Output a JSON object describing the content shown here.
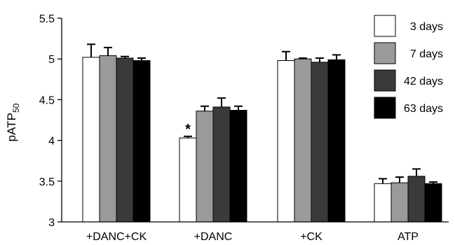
{
  "chart_data": {
    "type": "bar",
    "title": "",
    "xlabel": "",
    "ylabel": "pATP",
    "ylabel_subscript": "50",
    "ylim": [
      3,
      5.5
    ],
    "yticks": [
      "3",
      "3.5",
      "4",
      "4.5",
      "5",
      "5.5"
    ],
    "categories": [
      "+DANC+CK",
      "+DANC",
      "+CK",
      "ATP"
    ],
    "legend_position": "top-right",
    "grid": false,
    "series": [
      {
        "name": "3 days",
        "color": "#ffffff",
        "values": [
          5.02,
          4.03,
          4.98,
          3.47
        ],
        "errors": [
          0.16,
          0.02,
          0.11,
          0.06
        ]
      },
      {
        "name": "7 days",
        "color": "#9a9a9a",
        "values": [
          5.04,
          4.36,
          5.0,
          3.48
        ],
        "errors": [
          0.1,
          0.06,
          0.01,
          0.07
        ]
      },
      {
        "name": "42 days",
        "color": "#3a3a3a",
        "values": [
          5.01,
          4.41,
          4.96,
          3.56
        ],
        "errors": [
          0.02,
          0.11,
          0.05,
          0.09
        ]
      },
      {
        "name": "63 days",
        "color": "#000000",
        "values": [
          4.98,
          4.37,
          4.99,
          3.47
        ],
        "errors": [
          0.03,
          0.05,
          0.06,
          0.02
        ]
      }
    ],
    "annotations": [
      {
        "text": "*",
        "category": "+DANC",
        "series": "3 days"
      }
    ]
  }
}
